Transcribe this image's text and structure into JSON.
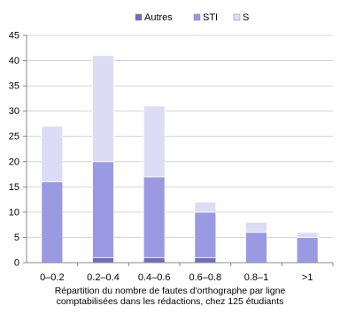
{
  "chart_data": {
    "type": "bar",
    "stacked": true,
    "categories": [
      "0–0.2",
      "0.2–0.4",
      "0.4–0.6",
      "0.6–0.8",
      "0.8–1",
      ">1"
    ],
    "series": [
      {
        "name": "Autres",
        "color": "#6d6db8",
        "values": [
          0,
          1,
          1,
          1,
          0,
          0
        ]
      },
      {
        "name": "STI",
        "color": "#9a9ae2",
        "values": [
          16,
          19,
          16,
          9,
          6,
          5
        ]
      },
      {
        "name": "S",
        "color": "#dcdcf6",
        "values": [
          11,
          21,
          14,
          2,
          2,
          1
        ]
      }
    ],
    "yticks": [
      0,
      5,
      10,
      15,
      20,
      25,
      30,
      35,
      40,
      45
    ],
    "ylim": [
      0,
      45
    ],
    "grid": true,
    "legend_position": "top"
  },
  "caption": {
    "line1": "Répartition du nombre de fautes d'orthographe par ligne",
    "line2": "comptabilisées dans les rédactions, chez 125 étudiants"
  }
}
